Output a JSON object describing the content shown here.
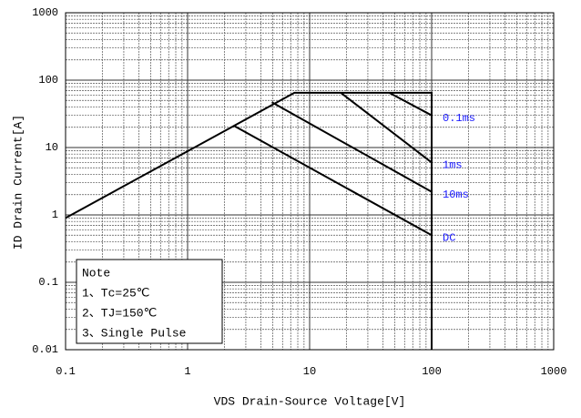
{
  "chart_data": {
    "type": "line",
    "xlabel": "VDS Drain-Source Voltage[V]",
    "ylabel": "ID Drain Current[A]",
    "xlog": true,
    "ylog": true,
    "xlim": [
      0.1,
      1000
    ],
    "ylim": [
      0.01,
      1000
    ],
    "xticks": [
      0.1,
      1,
      10,
      100,
      1000
    ],
    "yticks": [
      0.01,
      0.1,
      1,
      10,
      100,
      1000
    ],
    "grid": true,
    "minor_grid": true,
    "series": [
      {
        "color": "#000000",
        "x": [
          0.1,
          7.5,
          100,
          100
        ],
        "values": [
          0.9,
          65,
          65,
          0.01
        ]
      },
      {
        "name": "0.1ms",
        "color": "#000000",
        "label_color": "#1a1aff",
        "x": [
          45,
          100
        ],
        "values": [
          65,
          30
        ]
      },
      {
        "name": "1ms",
        "color": "#000000",
        "label_color": "#1a1aff",
        "x": [
          18,
          100
        ],
        "values": [
          65,
          6
        ]
      },
      {
        "name": "10ms",
        "color": "#000000",
        "label_color": "#1a1aff",
        "x": [
          4.9,
          100
        ],
        "values": [
          47,
          2.2
        ]
      },
      {
        "name": "DC",
        "color": "#000000",
        "label_color": "#1a1aff",
        "x": [
          2.4,
          100
        ],
        "values": [
          21,
          0.5
        ]
      }
    ],
    "note": {
      "title": "Note",
      "lines": [
        "1、Tc=25℃",
        "2、TJ=150℃",
        "3、Single Pulse"
      ]
    }
  }
}
